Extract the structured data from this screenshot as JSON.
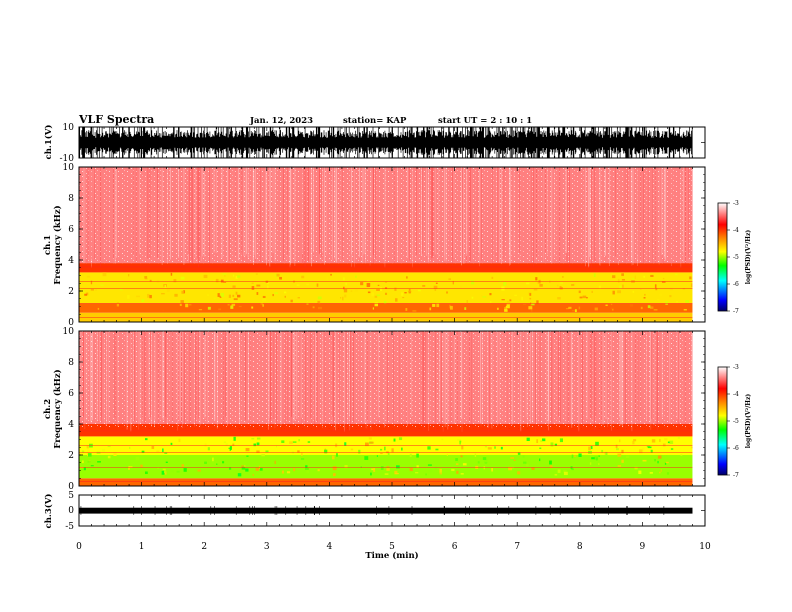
{
  "header": {
    "title": "VLF Spectra",
    "date": "Jan. 12, 2023",
    "station": "station= KAP",
    "start": "start  UT =   2 : 10 : 1"
  },
  "chart_data": [
    {
      "type": "line",
      "name": "ch1-waveform",
      "ylabel": "ch.1(V)",
      "ylim": [
        -10,
        10
      ],
      "yticks": [
        "10",
        "-10"
      ],
      "xlim": [
        0,
        10
      ],
      "x_end_data": 9.8,
      "note": "dense black waveform, saturating between -10 and 10"
    },
    {
      "type": "heatmap",
      "name": "ch1-spectrogram",
      "ylabel": "ch.1\nFrequency  (kHz)",
      "ylim": [
        0,
        10
      ],
      "yticks": [
        "0",
        "2",
        "4",
        "6",
        "8",
        "10"
      ],
      "xlim": [
        0,
        10
      ],
      "x_end_data": 9.8,
      "bands": [
        {
          "f_low": 0.0,
          "f_high": 0.6,
          "level": "-4.6"
        },
        {
          "f_low": 0.6,
          "f_high": 1.2,
          "level": "-4.2"
        },
        {
          "f_low": 1.2,
          "f_high": 3.2,
          "level": "-4.7"
        },
        {
          "f_low": 3.2,
          "f_high": 3.8,
          "level": "-4.0"
        },
        {
          "f_low": 3.8,
          "f_high": 10.0,
          "level": "-3.4"
        }
      ],
      "colorbar": {
        "ticks": [
          "-3",
          "-4",
          "-5",
          "-6",
          "-7"
        ],
        "label": "log(PSD)(V²/Hz)"
      }
    },
    {
      "type": "heatmap",
      "name": "ch2-spectrogram",
      "ylabel": "ch.2\nFrequency  (kHz)",
      "ylim": [
        0,
        10
      ],
      "yticks": [
        "0",
        "2",
        "4",
        "6",
        "8",
        "10"
      ],
      "xlim": [
        0,
        10
      ],
      "x_end_data": 9.8,
      "bands": [
        {
          "f_low": 0.0,
          "f_high": 0.5,
          "level": "-4.2"
        },
        {
          "f_low": 0.5,
          "f_high": 2.0,
          "level": "-5.0"
        },
        {
          "f_low": 2.0,
          "f_high": 3.2,
          "level": "-4.8"
        },
        {
          "f_low": 3.2,
          "f_high": 4.0,
          "level": "-4.0"
        },
        {
          "f_low": 4.0,
          "f_high": 10.0,
          "level": "-3.4"
        }
      ],
      "colorbar": {
        "ticks": [
          "-3",
          "-4",
          "-5",
          "-6",
          "-7"
        ],
        "label": "log(PSD)(V²/Hz)"
      }
    },
    {
      "type": "line",
      "name": "ch3-waveform",
      "ylabel": "ch.3(V)",
      "ylim": [
        -5,
        5
      ],
      "yticks": [
        "5",
        "0",
        "-5"
      ],
      "xlim": [
        0,
        10
      ],
      "x_end_data": 9.8,
      "note": "narrow black band near 0"
    }
  ],
  "xaxis": {
    "label": "Time  (min)",
    "ticks": [
      "0",
      "1",
      "2",
      "3",
      "4",
      "5",
      "6",
      "7",
      "8",
      "9",
      "10"
    ]
  },
  "colors": {
    "cmap": [
      "#000066",
      "#0000ff",
      "#00ffff",
      "#00ff00",
      "#ffff00",
      "#ff8000",
      "#ff0000",
      "#ffffff"
    ]
  }
}
